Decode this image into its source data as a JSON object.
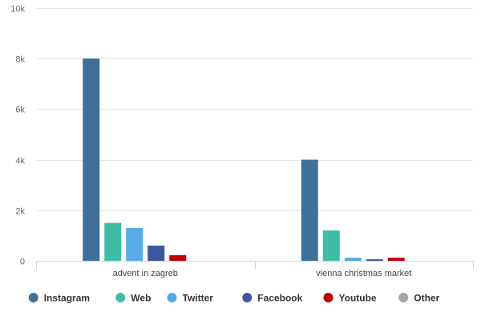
{
  "chart_data": {
    "type": "bar",
    "title": "",
    "xlabel": "",
    "ylabel": "",
    "categories": [
      "advent in zagreb",
      "vienna christmas market"
    ],
    "series": [
      {
        "name": "Instagram",
        "color": "#3e7099",
        "values": [
          8000,
          4000
        ]
      },
      {
        "name": "Web",
        "color": "#3dbfa5",
        "values": [
          1500,
          1200
        ]
      },
      {
        "name": "Twitter",
        "color": "#55aaea",
        "values": [
          1300,
          120
        ]
      },
      {
        "name": "Facebook",
        "color": "#3b589b",
        "values": [
          600,
          60
        ]
      },
      {
        "name": "Youtube",
        "color": "#c00000",
        "values": [
          220,
          120
        ]
      },
      {
        "name": "Other",
        "color": "#a5a5a5",
        "values": [
          0,
          0
        ]
      }
    ],
    "ylim": [
      0,
      10000
    ],
    "yticks": [
      0,
      2000,
      4000,
      6000,
      8000,
      10000
    ],
    "ytick_labels": [
      "0",
      "2k",
      "4k",
      "6k",
      "8k",
      "10k"
    ],
    "grid": true,
    "legend_position": "bottom"
  }
}
